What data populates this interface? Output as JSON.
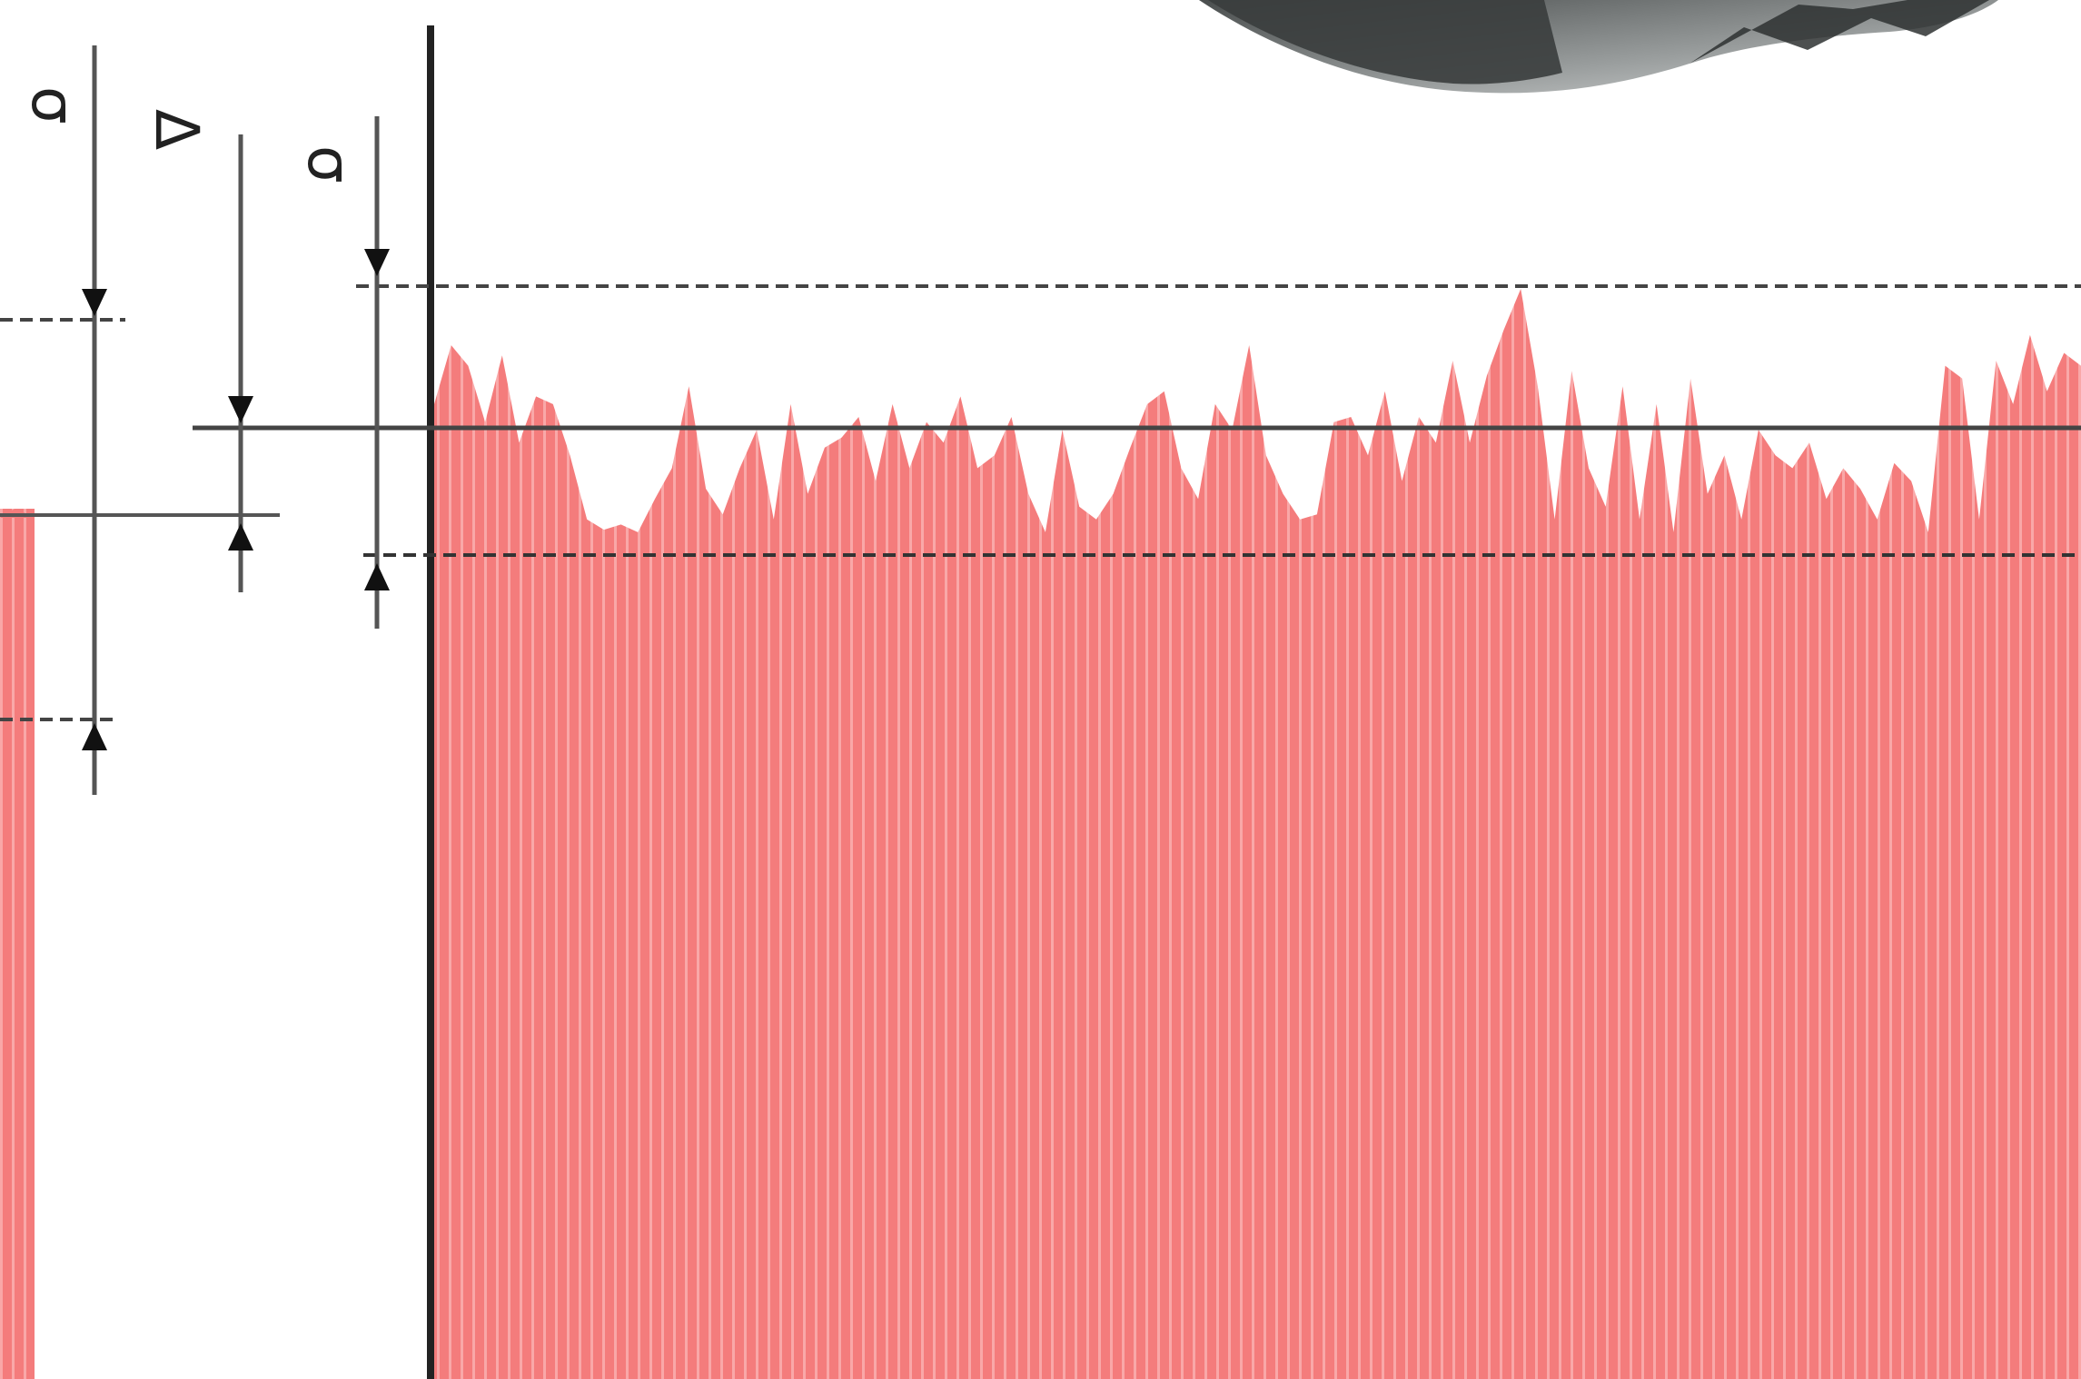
{
  "labels": {
    "sigma_outer": "σ",
    "delta": "Δ",
    "sigma_inner": "σ"
  },
  "colors": {
    "profile_fill": "#f47c7c",
    "profile_stripe": "#f7a3a3",
    "line": "#333333",
    "dashed": "#444444",
    "tool_dark": "#3a3d3d",
    "tool_light": "#bfc2c2"
  },
  "profile": {
    "heights": [
      0.55,
      0.78,
      0.7,
      0.48,
      0.74,
      0.4,
      0.58,
      0.55,
      0.35,
      0.1,
      0.06,
      0.08,
      0.05,
      0.18,
      0.3,
      0.62,
      0.22,
      0.12,
      0.3,
      0.45,
      0.1,
      0.55,
      0.2,
      0.38,
      0.42,
      0.5,
      0.25,
      0.55,
      0.3,
      0.48,
      0.4,
      0.58,
      0.3,
      0.35,
      0.5,
      0.2,
      0.05,
      0.45,
      0.15,
      0.1,
      0.2,
      0.38,
      0.55,
      0.6,
      0.3,
      0.18,
      0.55,
      0.45,
      0.78,
      0.35,
      0.2,
      0.1,
      0.12,
      0.48,
      0.5,
      0.35,
      0.6,
      0.25,
      0.5,
      0.4,
      0.72,
      0.4,
      0.66,
      0.84,
      1.0,
      0.62,
      0.1,
      0.68,
      0.3,
      0.15,
      0.62,
      0.1,
      0.55,
      0.05,
      0.65,
      0.2,
      0.35,
      0.1,
      0.45,
      0.35,
      0.3,
      0.4,
      0.18,
      0.3,
      0.22,
      0.1,
      0.32,
      0.25,
      0.05,
      0.7,
      0.65,
      0.1,
      0.72,
      0.55,
      0.82,
      0.6,
      0.75,
      0.7
    ]
  }
}
